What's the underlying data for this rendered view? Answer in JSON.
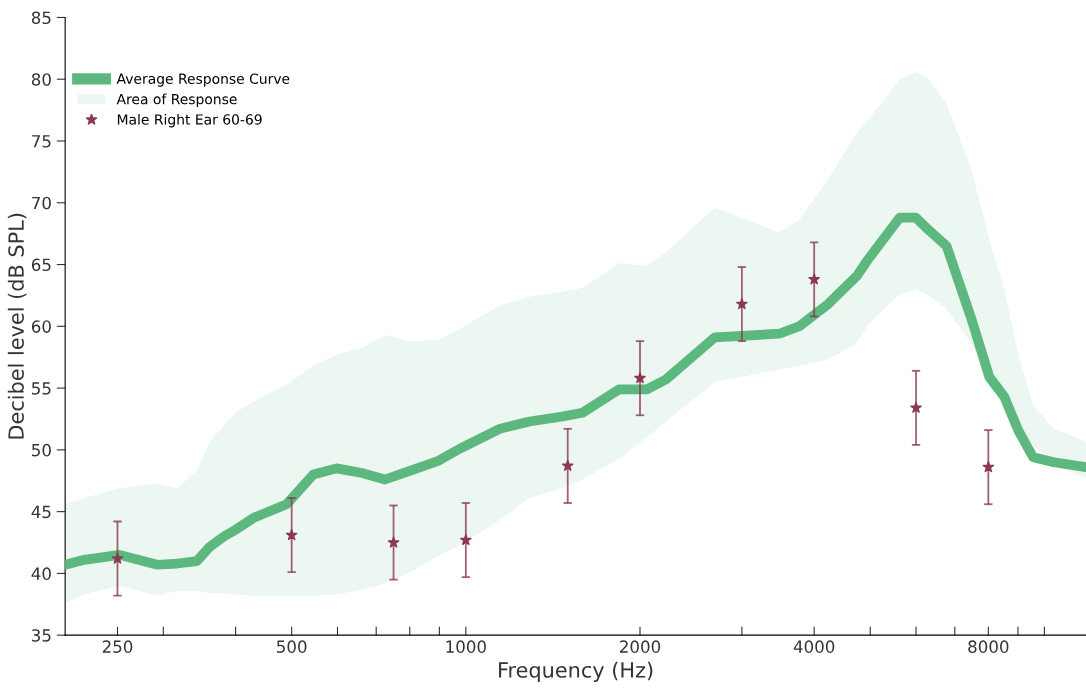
{
  "chart_data": {
    "type": "line",
    "xlabel": "Frequency (Hz)",
    "ylabel": "Decibel level (dB SPL)",
    "log": "x",
    "xlim": [
      203,
      11800
    ],
    "ylim": [
      35,
      85
    ],
    "xticks": [
      250,
      {
        "value": 300,
        "label": null
      },
      {
        "value": 400,
        "label": null
      },
      500,
      {
        "value": 600,
        "label": null
      },
      {
        "value": 700,
        "label": null
      },
      {
        "value": 800,
        "label": null
      },
      {
        "value": 900,
        "label": null
      },
      1000,
      2000,
      {
        "value": 3000,
        "label": null
      },
      4000,
      {
        "value": 5000,
        "label": null
      },
      {
        "value": 6000,
        "label": null
      },
      {
        "value": 7000,
        "label": null
      },
      8000,
      {
        "value": 9000,
        "label": null
      },
      {
        "value": 10000,
        "label": null
      }
    ],
    "yticks": [
      35,
      40,
      45,
      50,
      55,
      60,
      65,
      70,
      75,
      80,
      85
    ],
    "grid": false,
    "legend": "top left",
    "series": [
      {
        "name": "Average Response Curve",
        "type": "line",
        "color": "#5cb87f",
        "marker": "none",
        "line_style": "solid",
        "x": [
          203,
          219,
          252,
          293,
          317,
          343,
          360,
          382,
          402,
          430,
          490,
          545,
          598,
          665,
          725,
          800,
          895,
          977,
          1144,
          1289,
          1468,
          1590,
          1840,
          2056,
          2217,
          2693,
          3482,
          3769,
          4228,
          4744,
          4955,
          5622,
          5991,
          6307,
          6775,
          7479,
          8032,
          8522,
          9007,
          9560,
          10390,
          11795
        ],
        "values": [
          40.7,
          41.1,
          41.5,
          40.7,
          40.8,
          41.0,
          42.1,
          43.0,
          43.6,
          44.5,
          45.6,
          48.0,
          48.5,
          48.1,
          47.6,
          48.3,
          49.1,
          50.1,
          51.7,
          52.3,
          52.7,
          53.0,
          54.9,
          54.9,
          55.7,
          59.1,
          59.4,
          60.0,
          61.8,
          64.1,
          65.4,
          68.8,
          68.8,
          67.8,
          66.5,
          60.6,
          55.9,
          54.3,
          51.6,
          49.4,
          49.0,
          48.6
        ],
        "upper": [
          45.6,
          46.1,
          46.9,
          47.3,
          46.9,
          48.3,
          50.6,
          52.0,
          53.1,
          53.9,
          55.3,
          56.8,
          57.7,
          58.3,
          59.3,
          58.8,
          58.9,
          59.8,
          61.7,
          62.4,
          62.8,
          63.1,
          65.1,
          64.9,
          66.0,
          69.6,
          67.6,
          68.6,
          71.9,
          75.7,
          76.7,
          80.0,
          80.6,
          80.0,
          78.0,
          72.7,
          67.0,
          63.0,
          57.8,
          53.6,
          51.7,
          50.7
        ],
        "lower": [
          37.6,
          38.3,
          39.0,
          38.2,
          38.6,
          38.6,
          38.4,
          38.4,
          38.3,
          38.2,
          38.2,
          38.2,
          38.3,
          38.7,
          39.2,
          40.1,
          41.4,
          42.3,
          44.3,
          46.1,
          46.9,
          47.6,
          49.3,
          51.0,
          52.3,
          55.5,
          56.5,
          56.8,
          57.3,
          58.7,
          60.1,
          62.6,
          63.0,
          62.5,
          61.4,
          58.6,
          55.7,
          53.7,
          51.9,
          50.4,
          48.8,
          47.7
        ]
      },
      {
        "name": "Area of Response",
        "type": "area",
        "color": "#edf7f1"
      },
      {
        "name": "Male Right Ear 60-69",
        "type": "scatter",
        "color": "#8b3a52",
        "marker": "star",
        "x": [
          250,
          500,
          750,
          1000,
          1500,
          2000,
          3000,
          4000,
          6000,
          8000
        ],
        "values": [
          41.2,
          43.1,
          42.5,
          42.7,
          48.7,
          55.8,
          61.8,
          63.8,
          53.4,
          48.6
        ],
        "errors": [
          3,
          3,
          3,
          3,
          3,
          3,
          3,
          3,
          3,
          3
        ]
      }
    ]
  }
}
